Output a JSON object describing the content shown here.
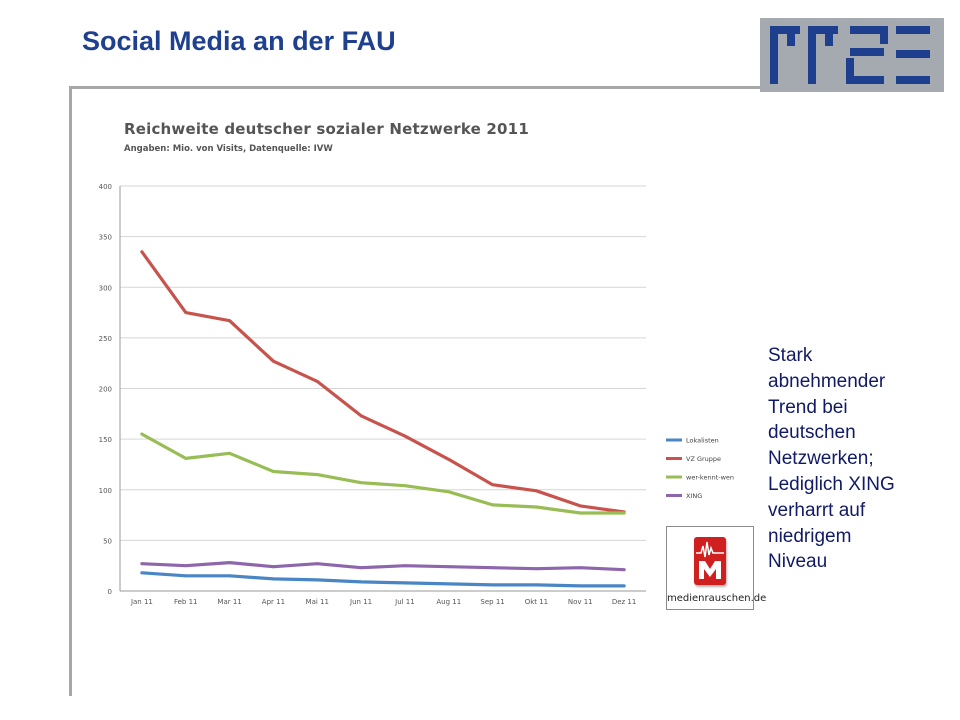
{
  "slide": {
    "title": "Social Media an der FAU",
    "caption_lines": [
      "Stark",
      "abnehmender",
      "Trend bei",
      "deutschen",
      "Netzwerken;",
      "Lediglich XING",
      "verharrt auf",
      "niedrigem",
      "Niveau"
    ]
  },
  "logo": {
    "label": "rrze",
    "box_color": "#a5a9b0",
    "glyph_color": "#1e3f8e"
  },
  "badge": {
    "text": "medienrauschen.de",
    "icon": "medienrauschen-logo-icon",
    "color": "#d01f1f"
  },
  "chart_data": {
    "type": "line",
    "title": "Reichweite deutscher sozialer Netzwerke 2011",
    "subtitle": "Angaben: Mio. von Visits, Datenquelle: IVW",
    "categories": [
      "Jan 11",
      "Feb 11",
      "Mar 11",
      "Apr 11",
      "Mai 11",
      "Jun 11",
      "Jul 11",
      "Aug 11",
      "Sep 11",
      "Okt 11",
      "Nov 11",
      "Dez 11"
    ],
    "ylim": [
      0,
      400
    ],
    "yticks": [
      0,
      50,
      100,
      150,
      200,
      250,
      300,
      350,
      400
    ],
    "grid": true,
    "legend_position": "right",
    "series": [
      {
        "name": "Lokalisten",
        "color": "#4a86c5",
        "values": [
          18,
          15,
          15,
          12,
          11,
          9,
          8,
          7,
          6,
          6,
          5,
          5
        ]
      },
      {
        "name": "VZ Gruppe",
        "color": "#c8534c",
        "values": [
          335,
          275,
          267,
          227,
          207,
          173,
          153,
          130,
          105,
          99,
          84,
          78
        ]
      },
      {
        "name": "wer-kennt-wen",
        "color": "#98bd55",
        "values": [
          155,
          131,
          136,
          118,
          115,
          107,
          104,
          98,
          85,
          83,
          77,
          77
        ]
      },
      {
        "name": "XING",
        "color": "#8e66ab",
        "values": [
          27,
          25,
          28,
          24,
          27,
          23,
          25,
          24,
          23,
          22,
          23,
          21
        ]
      }
    ]
  }
}
